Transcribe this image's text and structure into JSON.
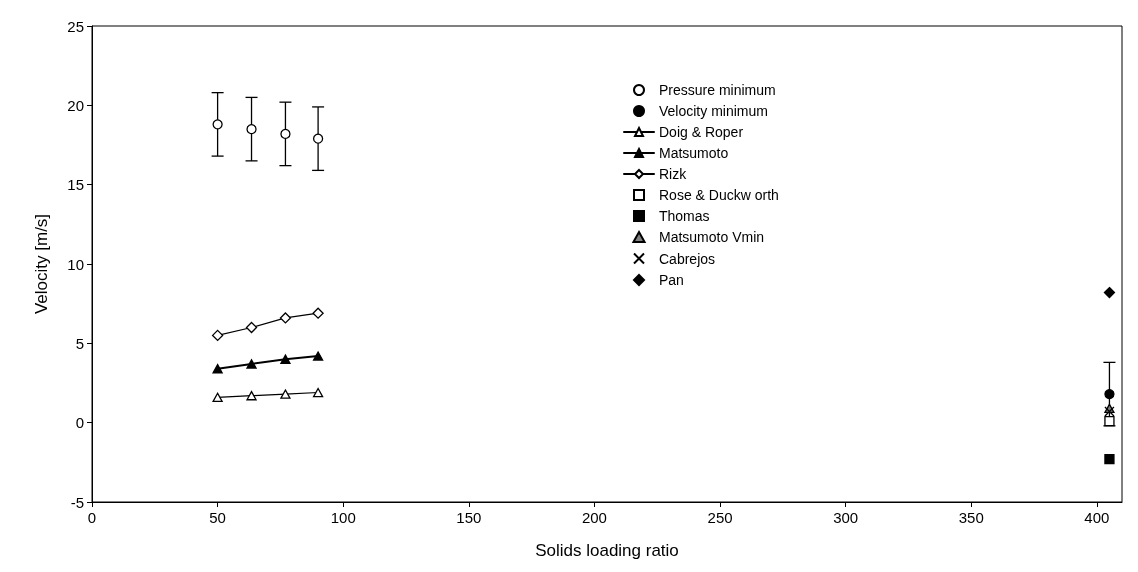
{
  "chart_data": {
    "type": "scatter",
    "xlabel": "Solids loading ratio",
    "ylabel": "Velocity [m/s]",
    "xlim": [
      0,
      410
    ],
    "xticks": [
      0,
      50,
      100,
      150,
      200,
      250,
      300,
      350,
      400
    ],
    "ylim": [
      -5,
      25
    ],
    "yticks": [
      -5,
      0,
      5,
      10,
      15,
      20,
      25
    ],
    "grid": false,
    "legend": "top right",
    "series": [
      {
        "name": "Pressure minimum",
        "marker": "circle",
        "color": "#ffffff",
        "x": [
          50,
          63.5,
          77,
          90
        ],
        "values": [
          18.8,
          18.5,
          18.2,
          17.9
        ],
        "errors": [
          2,
          2,
          2,
          2
        ]
      },
      {
        "name": "Velocity minimum",
        "marker": "circle",
        "color": "#000000",
        "x": [
          405
        ],
        "values": [
          1.8
        ],
        "errors": [
          2
        ]
      },
      {
        "name": "Doig & Roper",
        "type": "line",
        "marker": "triangle",
        "color": "#ffffff",
        "x": [
          50,
          63.5,
          77,
          90
        ],
        "values": [
          1.6,
          1.7,
          1.8,
          1.9
        ]
      },
      {
        "name": "Matsumoto",
        "type": "line",
        "marker": "triangle",
        "color": "#000000",
        "x": [
          50,
          63.5,
          77,
          90
        ],
        "values": [
          3.4,
          3.7,
          4.0,
          4.2
        ]
      },
      {
        "name": "Rizk",
        "type": "line",
        "marker": "diamond",
        "color": "#ffffff",
        "x": [
          50,
          63.5,
          77,
          90
        ],
        "values": [
          5.5,
          6.0,
          6.6,
          6.9
        ]
      },
      {
        "name": "Rose & Duckw orth",
        "marker": "square",
        "color": "#ffffff",
        "x": [
          405
        ],
        "values": [
          0.1
        ]
      },
      {
        "name": "Thomas",
        "marker": "square",
        "color": "#000000",
        "x": [
          405
        ],
        "values": [
          -2.3
        ]
      },
      {
        "name": "Matsumoto Vmin",
        "marker": "triangle",
        "color": "#808080",
        "x": [
          405
        ],
        "values": [
          0.9
        ]
      },
      {
        "name": "Cabrejos",
        "marker": "cross",
        "color": "#000000",
        "x": [
          405
        ],
        "values": [
          0.7
        ]
      },
      {
        "name": "Pan",
        "marker": "diamond",
        "color": "#000000",
        "x": [
          405
        ],
        "values": [
          8.2
        ]
      }
    ]
  }
}
